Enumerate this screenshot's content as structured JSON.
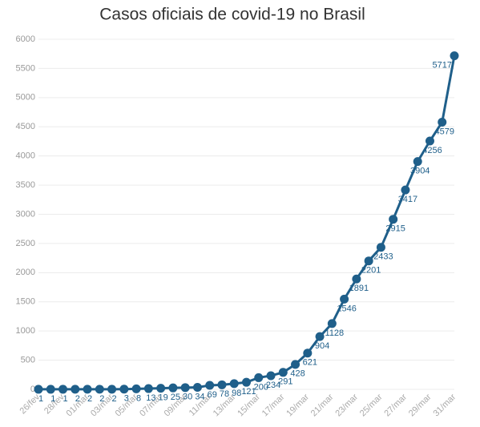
{
  "chart_data": {
    "type": "line",
    "title": "Casos oficiais de covid-19 no Brasil",
    "categories": [
      "26/fev",
      null,
      "28/fev",
      null,
      "01/mar",
      null,
      "03/mar",
      null,
      "05/mar",
      null,
      "07/mar",
      null,
      "09/mar",
      null,
      "11/mar",
      null,
      "13/mar",
      null,
      "15/mar",
      null,
      "17/mar",
      null,
      "19/mar",
      null,
      "21/mar",
      null,
      "23/mar",
      null,
      "25/mar",
      null,
      "27/mar",
      null,
      "29/mar",
      null,
      "31/mar"
    ],
    "series": [
      {
        "name": "Casos",
        "color": "#1f5f8a",
        "values": [
          1,
          1,
          1,
          2,
          2,
          2,
          2,
          3,
          8,
          13,
          19,
          25,
          30,
          34,
          69,
          78,
          98,
          121,
          200,
          234,
          291,
          428,
          621,
          904,
          1128,
          1546,
          1891,
          2201,
          2433,
          2915,
          3417,
          3904,
          4256,
          4579,
          5717
        ]
      }
    ],
    "ylim": [
      0,
      6000
    ],
    "yticks": [
      0,
      500,
      1000,
      1500,
      2000,
      2500,
      3000,
      3500,
      4000,
      4500,
      5000,
      5500,
      6000
    ],
    "grid": true
  }
}
